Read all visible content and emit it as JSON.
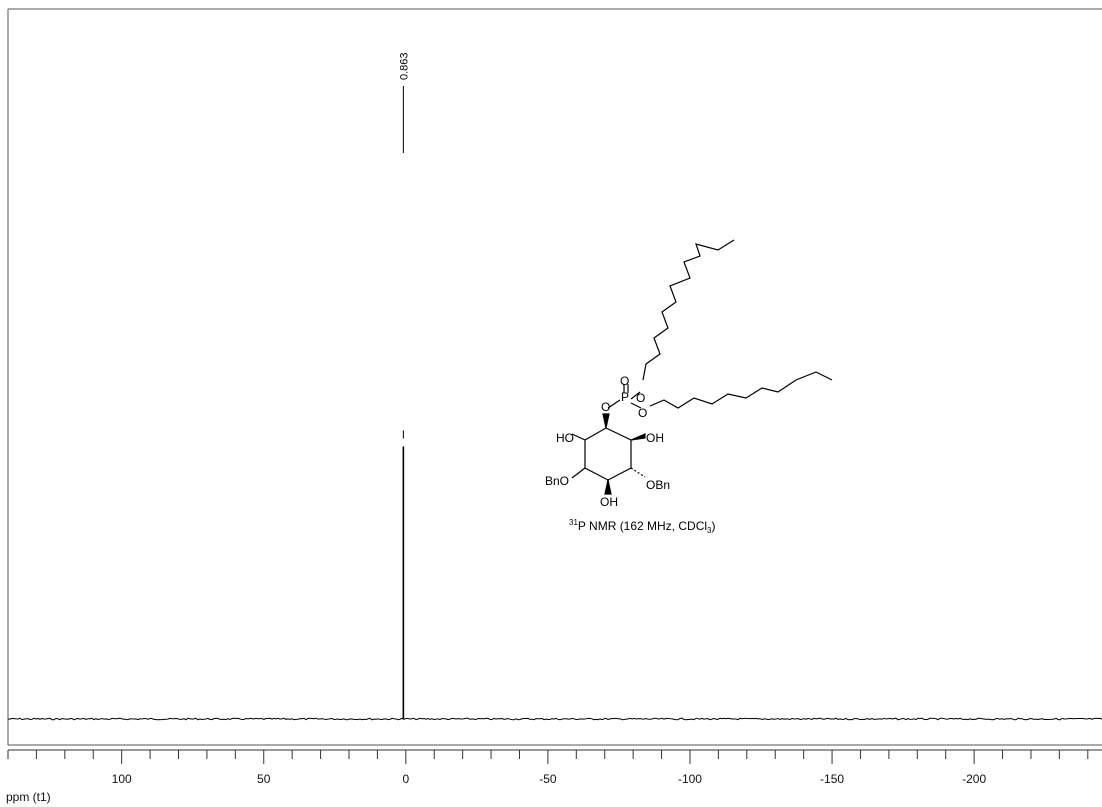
{
  "chart_data": {
    "type": "line",
    "title": "",
    "xlabel": "ppm (t1)",
    "ylabel": "",
    "xlim": [
      140,
      -245
    ],
    "x_direction": "reversed",
    "x_tick_labels": [
      100,
      50,
      0,
      -50,
      -100,
      -150,
      -200
    ],
    "x_minor_tick_step": 10,
    "grid": false,
    "legend": "none",
    "series": [
      {
        "peaks": [
          {
            "x": 0.863,
            "intensity": 0.5,
            "label": "0.863"
          }
        ],
        "baseline": 0.0
      }
    ],
    "annotations": {
      "experiment": {
        "nucleus_mass": "31",
        "text": "P NMR (162 MHz, CDCl",
        "subscript": "3",
        "close": ")"
      },
      "structure_labels": {
        "ho_left": "HO",
        "oh_right": "OH",
        "bno_left": "BnO",
        "obn_right": "OBn",
        "oh_bottom": "OH",
        "o_link": "O",
        "p": "P",
        "o_double": "O",
        "o_ester1": "O",
        "o_ester2": "O"
      }
    }
  },
  "colors": {
    "trace": "#000000",
    "frame": "#444444",
    "text": "#111111"
  }
}
